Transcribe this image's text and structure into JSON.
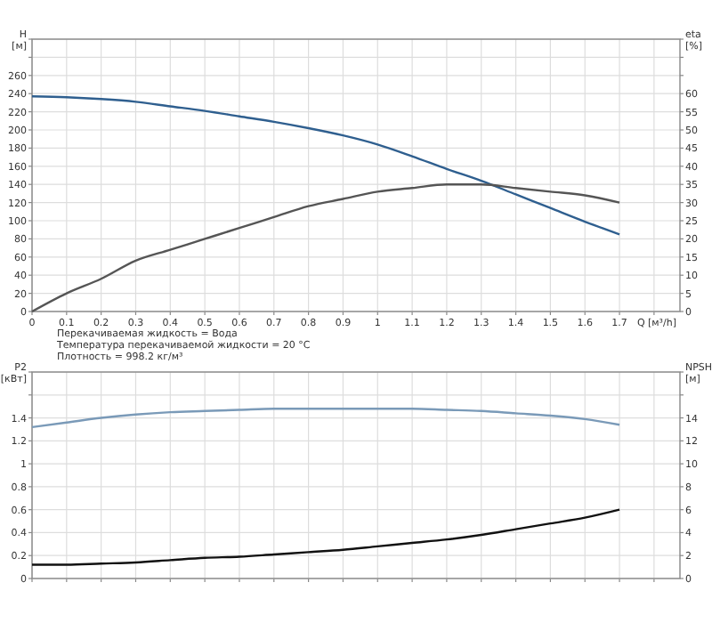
{
  "chart_data": [
    {
      "type": "line",
      "xlabel": "Q [м³/h]",
      "ylabel": "H [м]",
      "y2label": "eta [%]",
      "grid": true,
      "x": [
        0,
        0.1,
        0.2,
        0.3,
        0.4,
        0.5,
        0.6,
        0.7,
        0.8,
        0.9,
        1.0,
        1.1,
        1.2,
        1.3,
        1.4,
        1.5,
        1.6,
        1.7
      ],
      "series": [
        {
          "color": "#2f5f8f",
          "values": [
            237,
            236,
            234,
            231,
            226,
            221,
            215,
            209,
            202,
            194,
            184,
            171,
            157,
            144,
            129,
            114,
            99,
            85
          ]
        },
        {
          "color": "#555555",
          "axis": "y2",
          "values": [
            0,
            5,
            9,
            14,
            17,
            20,
            23,
            26,
            29,
            31,
            33,
            34,
            35,
            35,
            34,
            33,
            32,
            30
          ]
        }
      ],
      "xlim": [
        0,
        1.875
      ],
      "xticks": [
        0,
        0.1,
        0.2,
        0.3,
        0.4,
        0.5,
        0.6,
        0.7,
        0.8,
        0.9,
        1.0,
        1.1,
        1.2,
        1.3,
        1.4,
        1.5,
        1.6,
        1.7,
        {
          "value": 1.8,
          "label": null
        }
      ],
      "ylim": [
        0,
        300
      ],
      "yticks": [
        0,
        20,
        40,
        60,
        80,
        100,
        120,
        140,
        160,
        180,
        200,
        220,
        240,
        260,
        {
          "value": 280,
          "label": null
        },
        {
          "value": 300,
          "label": null
        }
      ],
      "y2lim": [
        0,
        75
      ],
      "y2ticks": [
        0,
        5,
        10,
        15,
        20,
        25,
        30,
        35,
        40,
        45,
        50,
        55,
        60,
        {
          "value": 65,
          "label": null
        },
        {
          "value": 70,
          "label": null
        },
        {
          "value": 75,
          "label": null
        }
      ],
      "annotations": [
        "Перекачиваемая жидкость = Вода",
        "Температура перекачиваемой жидкости = 20 °C",
        "Плотность = 998.2 кг/м³"
      ]
    },
    {
      "type": "line",
      "ylabel": "P2 [кВт]",
      "y2label": "NPSH [м]",
      "grid": true,
      "tick_labels": "y",
      "x": [
        0,
        0.1,
        0.2,
        0.3,
        0.4,
        0.5,
        0.6,
        0.7,
        0.8,
        0.9,
        1.0,
        1.1,
        1.2,
        1.3,
        1.4,
        1.5,
        1.6,
        1.7
      ],
      "series": [
        {
          "color": "#7a9ab8",
          "values": [
            1.32,
            1.36,
            1.4,
            1.43,
            1.45,
            1.46,
            1.47,
            1.48,
            1.48,
            1.48,
            1.48,
            1.48,
            1.47,
            1.46,
            1.44,
            1.42,
            1.39,
            1.34
          ]
        },
        {
          "color": "#111111",
          "axis": "y2",
          "values": [
            1.2,
            1.2,
            1.3,
            1.4,
            1.6,
            1.8,
            1.9,
            2.1,
            2.3,
            2.5,
            2.8,
            3.1,
            3.4,
            3.8,
            4.3,
            4.8,
            5.3,
            6.0
          ]
        }
      ],
      "xlim": [
        0,
        1.875
      ],
      "xticks": [
        0,
        0.1,
        0.2,
        0.3,
        0.4,
        0.5,
        0.6,
        0.7,
        0.8,
        0.9,
        1.0,
        1.1,
        1.2,
        1.3,
        1.4,
        1.5,
        1.6,
        1.7,
        1.8
      ],
      "ylim": [
        0,
        1.8
      ],
      "yticks": [
        0,
        0.2,
        0.4,
        0.6,
        0.8,
        1.0,
        1.2,
        1.4,
        {
          "value": 1.6,
          "label": null
        },
        {
          "value": 1.8,
          "label": null
        }
      ],
      "y2lim": [
        0,
        18
      ],
      "y2ticks": [
        0,
        2,
        4,
        6,
        8,
        10,
        12,
        14,
        {
          "value": 16,
          "label": null
        },
        {
          "value": 18,
          "label": null
        }
      ]
    }
  ]
}
